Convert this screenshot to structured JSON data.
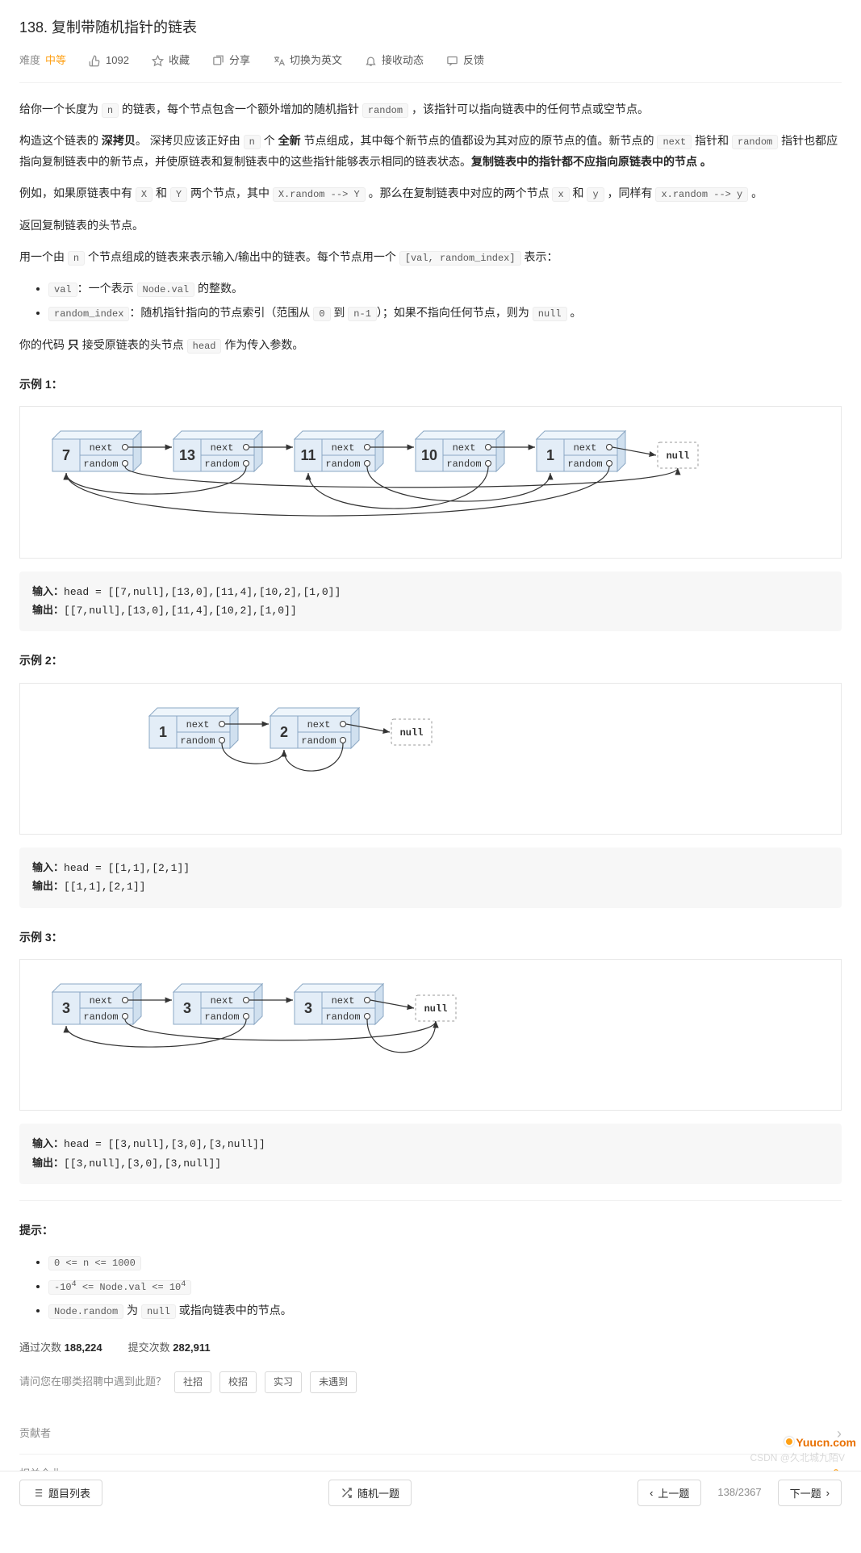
{
  "title": "138. 复制带随机指针的链表",
  "meta": {
    "difficulty_label": "难度",
    "difficulty": "中等",
    "likes": "1092",
    "fav": "收藏",
    "share": "分享",
    "switch": "切换为英文",
    "notify": "接收动态",
    "feedback": "反馈"
  },
  "body": {
    "p1_a": "给你一个长度为 ",
    "p1_n": "n",
    "p1_b": " 的链表，每个节点包含一个额外增加的随机指针 ",
    "p1_random": "random",
    "p1_c": " ，该指针可以指向链表中的任何节点或空节点。",
    "p2_a": "构造这个链表的 ",
    "p2_deep": "深拷贝",
    "p2_b": "。 深拷贝应该正好由 ",
    "p2_n": "n",
    "p2_c": " 个 ",
    "p2_new": "全新",
    "p2_d": " 节点组成，其中每个新节点的值都设为其对应的原节点的值。新节点的 ",
    "p2_next": "next",
    "p2_e": " 指针和 ",
    "p2_random": "random",
    "p2_f": " 指针也都应指向复制链表中的新节点，并使原链表和复制链表中的这些指针能够表示相同的链表状态。",
    "p2_bold": "复制链表中的指针都不应指向原链表中的节点 。",
    "p3_a": "例如，如果原链表中有 ",
    "p3_X": "X",
    "p3_b": " 和 ",
    "p3_Y": "Y",
    "p3_c": " 两个节点，其中 ",
    "p3_xr": "X.random --> Y",
    "p3_d": " 。那么在复制链表中对应的两个节点 ",
    "p3_x": "x",
    "p3_e": " 和 ",
    "p3_y": "y",
    "p3_f": " ，同样有 ",
    "p3_yr": "x.random --> y",
    "p3_g": " 。",
    "p4": "返回复制链表的头节点。",
    "p5_a": "用一个由 ",
    "p5_n": "n",
    "p5_b": " 个节点组成的链表来表示输入/输出中的链表。每个节点用一个 ",
    "p5_pair": "[val, random_index]",
    "p5_c": " 表示：",
    "li1_a": "val",
    "li1_b": "：一个表示 ",
    "li1_c": "Node.val",
    "li1_d": " 的整数。",
    "li2_a": "random_index",
    "li2_b": "：随机指针指向的节点索引（范围从 ",
    "li2_c": "0",
    "li2_d": " 到 ",
    "li2_e": "n-1",
    "li2_f": "）；如果不指向任何节点，则为  ",
    "li2_g": "null",
    "li2_h": " 。",
    "p6_a": "你的代码 ",
    "p6_only": "只",
    "p6_b": " 接受原链表的头节点 ",
    "p6_head": "head",
    "p6_c": " 作为传入参数。"
  },
  "examples": {
    "ex1_title": "示例 1：",
    "ex1_in_lbl": "输入：",
    "ex1_in": "head = [[7,null],[13,0],[11,4],[10,2],[1,0]]",
    "ex1_out_lbl": "输出：",
    "ex1_out": "[[7,null],[13,0],[11,4],[10,2],[1,0]]",
    "ex2_title": "示例 2：",
    "ex2_in_lbl": "输入：",
    "ex2_in": "head = [[1,1],[2,1]]",
    "ex2_out_lbl": "输出：",
    "ex2_out": "[[1,1],[2,1]]",
    "ex3_title": "示例 3：",
    "ex3_in_lbl": "输入：",
    "ex3_in": "head = [[3,null],[3,0],[3,null]]",
    "ex3_out_lbl": "输出：",
    "ex3_out": "[[3,null],[3,0],[3,null]]"
  },
  "hints": {
    "title": "提示：",
    "h1": "0 <= n <= 1000",
    "h2_a": "-10",
    "h2_sup": "4",
    "h2_b": " <= Node.val <= 10",
    "h3_a": "Node.random",
    "h3_b": " 为 ",
    "h3_c": "null",
    "h3_d": " 或指向链表中的节点。"
  },
  "stats": {
    "pass_lbl": "通过次数",
    "pass": "188,224",
    "sub_lbl": "提交次数",
    "sub": "282,911"
  },
  "ask": {
    "q": "请问您在哪类招聘中遇到此题？",
    "a": "社招",
    "b": "校招",
    "c": "实习",
    "d": "未遇到"
  },
  "sections": {
    "contributor": "贡献者",
    "company": "相关企业"
  },
  "bottom": {
    "list": "题目列表",
    "random": "随机一题",
    "prev": "上一题",
    "page": "138/2367",
    "next": "下一题"
  },
  "watermark": "CSDN @久北城九陌V",
  "yuucn": "Yuucn.com",
  "diagrams": {
    "d1": {
      "nodes": [
        {
          "val": "7"
        },
        {
          "val": "13"
        },
        {
          "val": "11"
        },
        {
          "val": "10"
        },
        {
          "val": "1"
        }
      ],
      "null_label": "null",
      "next_label": "next",
      "random_label": "random",
      "colors": {
        "node_fill": "#e3edf7",
        "node_stroke": "#8ba8c4",
        "arrow": "#333333",
        "null_stroke": "#999999"
      },
      "random_edges": [
        [
          0,
          null
        ],
        [
          1,
          0
        ],
        [
          2,
          4
        ],
        [
          3,
          2
        ],
        [
          4,
          0
        ]
      ]
    },
    "d2": {
      "nodes": [
        {
          "val": "1"
        },
        {
          "val": "2"
        }
      ],
      "null_label": "null",
      "random_edges": [
        [
          0,
          1
        ],
        [
          1,
          1
        ]
      ]
    },
    "d3": {
      "nodes": [
        {
          "val": "3"
        },
        {
          "val": "3"
        },
        {
          "val": "3"
        }
      ],
      "null_label": "null",
      "random_edges": [
        [
          0,
          null
        ],
        [
          1,
          0
        ],
        [
          2,
          null
        ]
      ]
    }
  }
}
